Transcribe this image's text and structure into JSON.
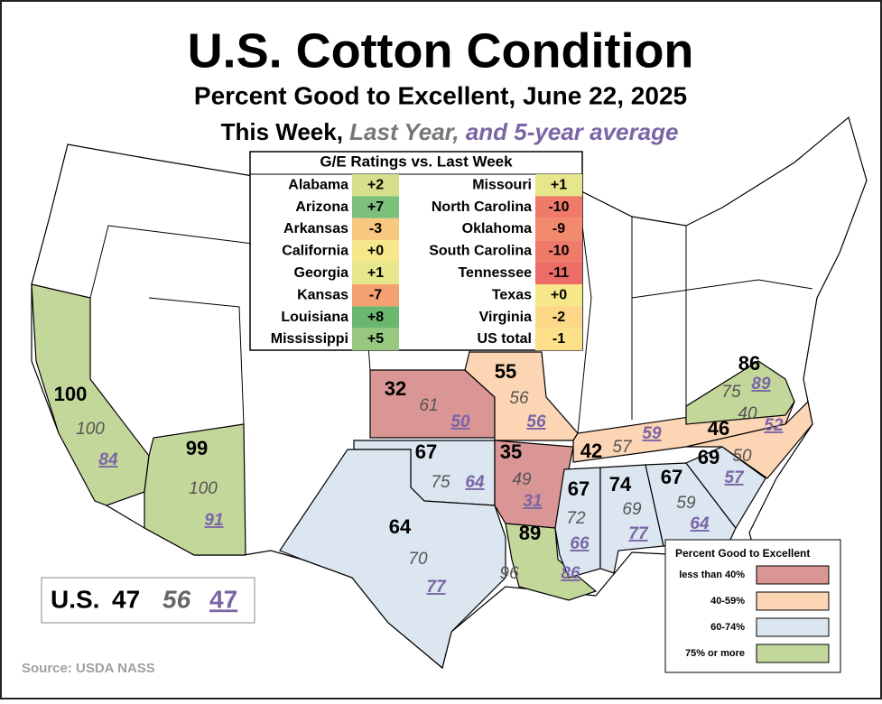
{
  "header": {
    "title": "U.S. Cotton Condition",
    "subtitle": "Percent Good to Excellent, June 22, 2025",
    "key_this_week": "This Week,",
    "key_last_year": "Last Year,",
    "key_average": "and 5-year average"
  },
  "changes_table": {
    "title": "G/E Ratings vs. Last Week",
    "rows": [
      [
        {
          "state": "Alabama",
          "change": "+2",
          "color": "#d6e08c"
        },
        {
          "state": "Missouri",
          "change": "+1",
          "color": "#e6e68c"
        }
      ],
      [
        {
          "state": "Arizona",
          "change": "+7",
          "color": "#7dc07c"
        },
        {
          "state": "North Carolina",
          "change": "-10",
          "color": "#f07a6a"
        }
      ],
      [
        {
          "state": "Arkansas",
          "change": "-3",
          "color": "#f8c880"
        },
        {
          "state": "Oklahoma",
          "change": "-9",
          "color": "#f28a6e"
        }
      ],
      [
        {
          "state": "California",
          "change": "+0",
          "color": "#f6e88a"
        },
        {
          "state": "South Carolina",
          "change": "-10",
          "color": "#f07a6a"
        }
      ],
      [
        {
          "state": "Georgia",
          "change": "+1",
          "color": "#e6e68c"
        },
        {
          "state": "Tennessee",
          "change": "-11",
          "color": "#ee6c68"
        }
      ],
      [
        {
          "state": "Kansas",
          "change": "-7",
          "color": "#f5a070"
        },
        {
          "state": "Texas",
          "change": "+0",
          "color": "#f6e88a"
        }
      ],
      [
        {
          "state": "Louisiana",
          "change": "+8",
          "color": "#6ab870"
        },
        {
          "state": "Virginia",
          "change": "-2",
          "color": "#fcd888"
        }
      ],
      [
        {
          "state": "Mississippi",
          "change": "+5",
          "color": "#98c880"
        },
        {
          "state": "US total",
          "change": "-1",
          "color": "#fde08a"
        }
      ]
    ]
  },
  "states": [
    {
      "this_week": 100,
      "last_year": 100,
      "average": 84,
      "color": "#c4d79b"
    },
    {
      "this_week": 99,
      "last_year": 100,
      "average": 91,
      "color": "#c4d79b"
    },
    {
      "this_week": 32,
      "last_year": 61,
      "average": 50,
      "color": "#da9694"
    },
    {
      "this_week": 55,
      "last_year": 56,
      "average": 56,
      "color": "#fcd5b4"
    },
    {
      "this_week": 67,
      "last_year": 75,
      "average": 64,
      "color": "#dce6f1"
    },
    {
      "this_week": 64,
      "last_year": 70,
      "average": 77,
      "color": "#dce6f1"
    },
    {
      "this_week": 35,
      "last_year": 49,
      "average": 31,
      "color": "#da9694"
    },
    {
      "this_week": 89,
      "last_year": 96,
      "average": 86,
      "color": "#c4d79b"
    },
    {
      "this_week": 67,
      "last_year": 72,
      "average": 66,
      "color": "#dce6f1"
    },
    {
      "this_week": 74,
      "last_year": 69,
      "average": 77,
      "color": "#dce6f1"
    },
    {
      "this_week": 67,
      "last_year": 59,
      "average": 64,
      "color": "#dce6f1"
    },
    {
      "this_week": 69,
      "last_year": 50,
      "average": 57,
      "color": "#dce6f1"
    },
    {
      "this_week": 42,
      "last_year": 57,
      "average": 59,
      "color": "#fcd5b4"
    },
    {
      "this_week": 46,
      "last_year": 40,
      "average": 52,
      "color": "#fcd5b4"
    },
    {
      "this_week": 86,
      "last_year": 75,
      "average": 89,
      "color": "#c4d79b"
    }
  ],
  "us_total": {
    "label": "U.S.",
    "this_week": 47,
    "last_year": 56,
    "average": 47
  },
  "legend": {
    "title": "Percent Good to Excellent",
    "items": [
      {
        "label": "less than 40%",
        "color": "#da9694"
      },
      {
        "label": "40-59%",
        "color": "#fcd5b4"
      },
      {
        "label": "60-74%",
        "color": "#dce6f1"
      },
      {
        "label": "75% or more",
        "color": "#c4d79b"
      }
    ]
  },
  "source": "Source: USDA NASS"
}
